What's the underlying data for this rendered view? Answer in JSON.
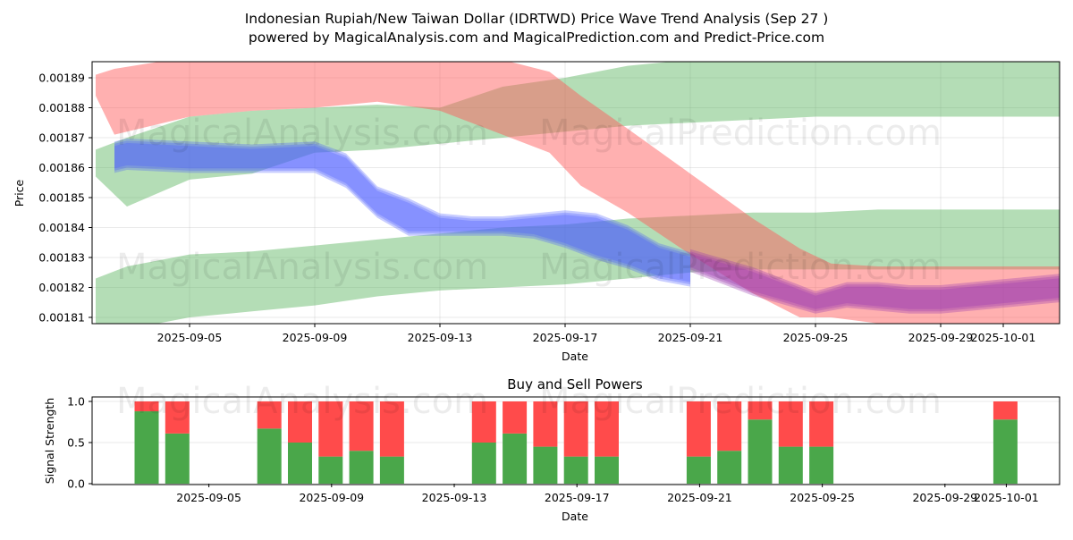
{
  "header": {
    "title": "Indonesian Rupiah/New Taiwan Dollar (IDRTWD) Price Wave Trend Analysis (Sep 27 )",
    "subtitle": "powered by MagicalAnalysis.com and MagicalPrediction.com and Predict-Price.com"
  },
  "watermarks": [
    "MagicalAnalysis.com",
    "MagicalPrediction.com"
  ],
  "chart_data": [
    {
      "type": "area",
      "title": "",
      "xlabel": "Date",
      "ylabel": "Price",
      "ylim": [
        0.001808,
        0.001896
      ],
      "xlim": [
        "2025-09-02",
        "2025-10-02"
      ],
      "yticks": [
        "0.00181",
        "0.00182",
        "0.00183",
        "0.00184",
        "0.00185",
        "0.00186",
        "0.00187",
        "0.00188",
        "0.00189"
      ],
      "ytick_values": [
        0.00181,
        0.00182,
        0.00183,
        0.00184,
        0.00185,
        0.00186,
        0.00187,
        0.00188,
        0.00189
      ],
      "xticks": [
        "2025-09-05",
        "2025-09-09",
        "2025-09-13",
        "2025-09-17",
        "2025-09-21",
        "2025-09-25",
        "2025-09-29",
        "2025-10-01"
      ],
      "xtick_days": [
        3,
        7,
        11,
        15,
        19,
        23,
        27,
        29
      ],
      "grid": true,
      "colors": {
        "green": "#4caf50",
        "red": "#ff5a5a",
        "brown": "#8b6a3a",
        "blue": "#4a5aff",
        "purple": "#9a3bb0"
      },
      "series": [
        {
          "name": "green-upper-band",
          "color": "green",
          "days": [
            0,
            1,
            3,
            5,
            7,
            9,
            11,
            13,
            15,
            17,
            19,
            21,
            23,
            25,
            27,
            29,
            31
          ],
          "upper": [
            0.001866,
            0.00187,
            0.001877,
            0.001879,
            0.00188,
            0.001881,
            0.00188,
            0.001887,
            0.00189,
            0.001894,
            0.001896,
            0.001896,
            0.001896,
            0.001896,
            0.001896,
            0.001896,
            0.001896
          ],
          "lower": [
            0.001857,
            0.001847,
            0.001856,
            0.001858,
            0.001865,
            0.001866,
            0.001868,
            0.00187,
            0.001872,
            0.001874,
            0.001875,
            0.001876,
            0.001877,
            0.001877,
            0.001877,
            0.001877,
            0.001877
          ]
        },
        {
          "name": "green-lower-band",
          "color": "green",
          "days": [
            0,
            1,
            3,
            5,
            7,
            9,
            11,
            13,
            15,
            17,
            19,
            21,
            23,
            25,
            27,
            29,
            31
          ],
          "upper": [
            0.001823,
            0.001827,
            0.001831,
            0.001832,
            0.001834,
            0.001836,
            0.001838,
            0.00184,
            0.001841,
            0.001843,
            0.001844,
            0.001845,
            0.001845,
            0.001846,
            0.001846,
            0.001846,
            0.001846
          ],
          "lower": [
            0.001806,
            0.001806,
            0.00181,
            0.001812,
            0.001814,
            0.001817,
            0.001819,
            0.00182,
            0.001821,
            0.001823,
            0.001825,
            0.001826,
            0.001826,
            0.001826,
            0.001826,
            0.001826,
            0.001826
          ]
        },
        {
          "name": "red-descending-band",
          "color": "red",
          "days": [
            0,
            0.6,
            3,
            5,
            7,
            9,
            11,
            13,
            14.5,
            15.5,
            17,
            19,
            21,
            22.5,
            23.5,
            25,
            27,
            29,
            31
          ],
          "upper": [
            0.001891,
            0.001893,
            0.001897,
            0.001897,
            0.001897,
            0.001897,
            0.001897,
            0.001896,
            0.001892,
            0.001884,
            0.001873,
            0.001858,
            0.001843,
            0.001833,
            0.001828,
            0.001827,
            0.001827,
            0.001827,
            0.001827
          ],
          "lower": [
            0.001884,
            0.001871,
            0.001877,
            0.001879,
            0.00188,
            0.001882,
            0.001879,
            0.001871,
            0.001865,
            0.001854,
            0.001845,
            0.001831,
            0.001818,
            0.00181,
            0.00181,
            0.001808,
            0.001808,
            0.001808,
            0.001808
          ]
        },
        {
          "name": "purple-forecast-band",
          "color": "purple",
          "days": [
            19,
            20,
            21,
            22,
            23,
            24,
            25,
            26,
            27,
            28,
            29,
            30,
            31
          ],
          "upper": [
            0.001832,
            0.001829,
            0.001826,
            0.001822,
            0.001818,
            0.001821,
            0.001821,
            0.00182,
            0.00182,
            0.001821,
            0.001822,
            0.001823,
            0.001824
          ],
          "lower": [
            0.001826,
            0.001822,
            0.001818,
            0.001815,
            0.001812,
            0.001814,
            0.001813,
            0.001812,
            0.001812,
            0.001813,
            0.001814,
            0.001815,
            0.001816
          ]
        },
        {
          "name": "blue-price-wave",
          "color": "blue",
          "days": [
            0.6,
            1,
            3,
            5,
            7,
            8,
            9,
            10,
            11,
            12,
            13,
            14,
            15,
            16,
            17,
            18,
            19
          ],
          "upper": [
            0.001868,
            0.001869,
            0.001868,
            0.001867,
            0.001868,
            0.001864,
            0.001853,
            0.001849,
            0.001844,
            0.001843,
            0.001843,
            0.001844,
            0.001845,
            0.001844,
            0.00184,
            0.001834,
            0.001831
          ],
          "lower": [
            0.001859,
            0.00186,
            0.001859,
            0.001859,
            0.001859,
            0.001854,
            0.001844,
            0.001838,
            0.001838,
            0.001838,
            0.001838,
            0.001837,
            0.001834,
            0.00183,
            0.001827,
            0.001823,
            0.001821
          ]
        }
      ]
    },
    {
      "type": "bar",
      "title": "Buy and Sell Powers",
      "xlabel": "Date",
      "ylabel": "Signal Strength",
      "ylim": [
        0,
        1.0
      ],
      "yticks": [
        "0.0",
        "0.5",
        "1.0"
      ],
      "ytick_values": [
        0,
        0.5,
        1.0
      ],
      "xticks": [
        "2025-09-05",
        "2025-09-09",
        "2025-09-13",
        "2025-09-17",
        "2025-09-21",
        "2025-09-25",
        "2025-09-29",
        "2025-10-01"
      ],
      "xtick_days": [
        3,
        7,
        11,
        15,
        19,
        23,
        27,
        29
      ],
      "grid": true,
      "categories": [
        "2025-09-04",
        "2025-09-05",
        "2025-09-08",
        "2025-09-09",
        "2025-09-10",
        "2025-09-11",
        "2025-09-12",
        "2025-09-15",
        "2025-09-16",
        "2025-09-17",
        "2025-09-18",
        "2025-09-19",
        "2025-09-22",
        "2025-09-23",
        "2025-09-24",
        "2025-09-25",
        "2025-09-26",
        "2025-10-02"
      ],
      "days": [
        2,
        3,
        6,
        7,
        8,
        9,
        10,
        13,
        14,
        15,
        16,
        17,
        20,
        21,
        22,
        23,
        24,
        30
      ],
      "series": [
        {
          "name": "Buy",
          "color": "#4aa74a",
          "values": [
            0.88,
            0.61,
            0.67,
            0.5,
            0.33,
            0.4,
            0.33,
            0.5,
            0.61,
            0.45,
            0.33,
            0.33,
            0.33,
            0.4,
            0.78,
            0.45,
            0.45,
            0.78
          ]
        },
        {
          "name": "Sell",
          "color": "#ff4b4b",
          "values": [
            0.12,
            0.39,
            0.33,
            0.5,
            0.67,
            0.6,
            0.67,
            0.5,
            0.39,
            0.55,
            0.67,
            0.67,
            0.67,
            0.6,
            0.22,
            0.55,
            0.55,
            0.22
          ]
        }
      ]
    }
  ]
}
